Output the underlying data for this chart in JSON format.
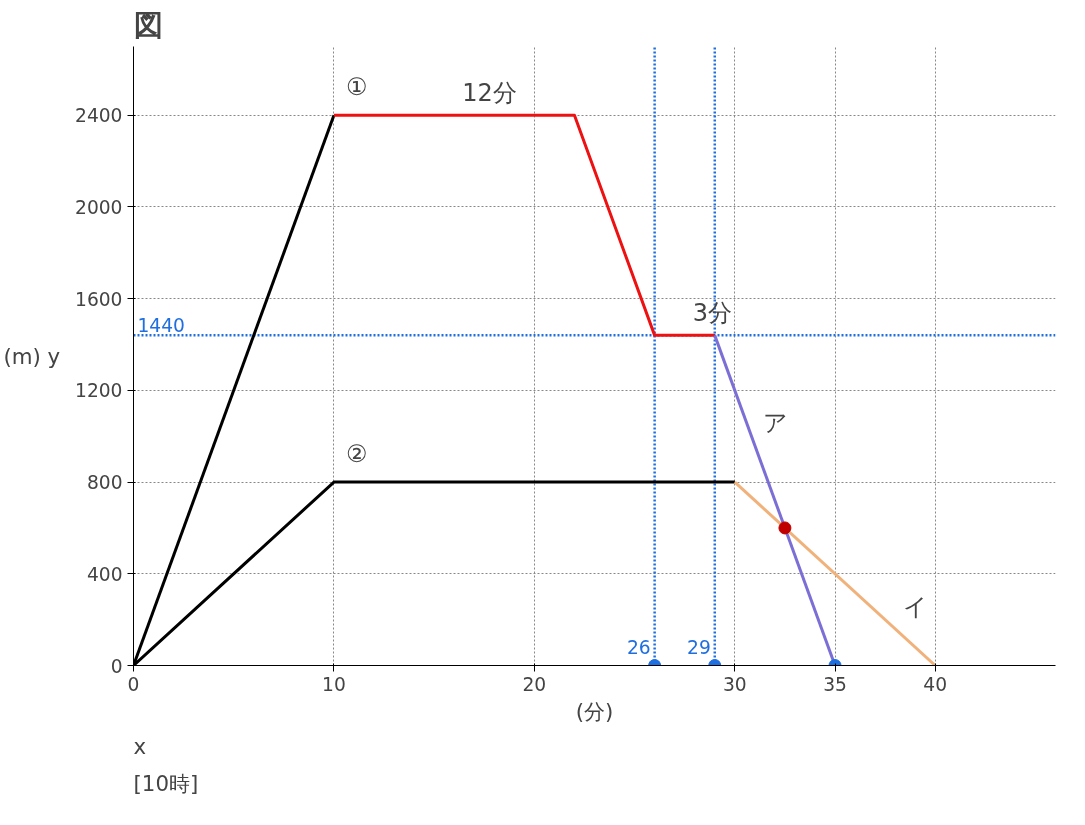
{
  "chart_data": {
    "type": "line",
    "title": "図",
    "ylabel": "(m)  y",
    "xlabel": "(分)",
    "xlim": [
      0,
      46
    ],
    "ylim": [
      0,
      2700
    ],
    "xticks": [
      0,
      10,
      20,
      30,
      35,
      40
    ],
    "yticks": [
      0,
      400,
      800,
      1200,
      1600,
      2000,
      2400
    ],
    "grid": true,
    "series": [
      {
        "name": "①",
        "color": "#000000",
        "x": [
          0,
          10
        ],
        "values": [
          0,
          2400
        ]
      },
      {
        "color": "#ee1111",
        "x": [
          10,
          22,
          26,
          29
        ],
        "values": [
          2400,
          2400,
          1440,
          1440
        ]
      },
      {
        "color": "#7b6fd6",
        "x": [
          29,
          35
        ],
        "values": [
          1440,
          0
        ]
      },
      {
        "name": "②",
        "color": "#000000",
        "x": [
          0,
          10,
          30
        ],
        "values": [
          0,
          800,
          800
        ]
      },
      {
        "color": "#f0b27a",
        "x": [
          30,
          40
        ],
        "values": [
          800,
          0
        ]
      },
      {
        "type": "scatter",
        "color": "#c00000",
        "x": [
          32.5
        ],
        "values": [
          600
        ]
      },
      {
        "type": "scatter",
        "color": "#1f6fe0",
        "x": [
          26,
          29,
          35
        ],
        "values": [
          0,
          0,
          0
        ]
      }
    ],
    "ref_lines": [
      {
        "axis": "y",
        "value": 1440,
        "label": "1440",
        "color": "#1f6fe0",
        "line_style": "dotted"
      },
      {
        "axis": "x",
        "value": 26,
        "label": "26",
        "color": "#1f6fe0",
        "line_style": "dotted"
      },
      {
        "axis": "x",
        "value": 29,
        "label": "29",
        "color": "#1f6fe0",
        "line_style": "dotted"
      }
    ],
    "annotations": [
      {
        "text": "12分",
        "x": 16,
        "y": 2400
      },
      {
        "text": "3分",
        "x": 27.5,
        "y": 1440
      },
      {
        "text": "ア",
        "x": 31,
        "y": 960
      },
      {
        "text": "イ",
        "x": 38,
        "y": 160
      },
      "x",
      "[10時]"
    ]
  }
}
